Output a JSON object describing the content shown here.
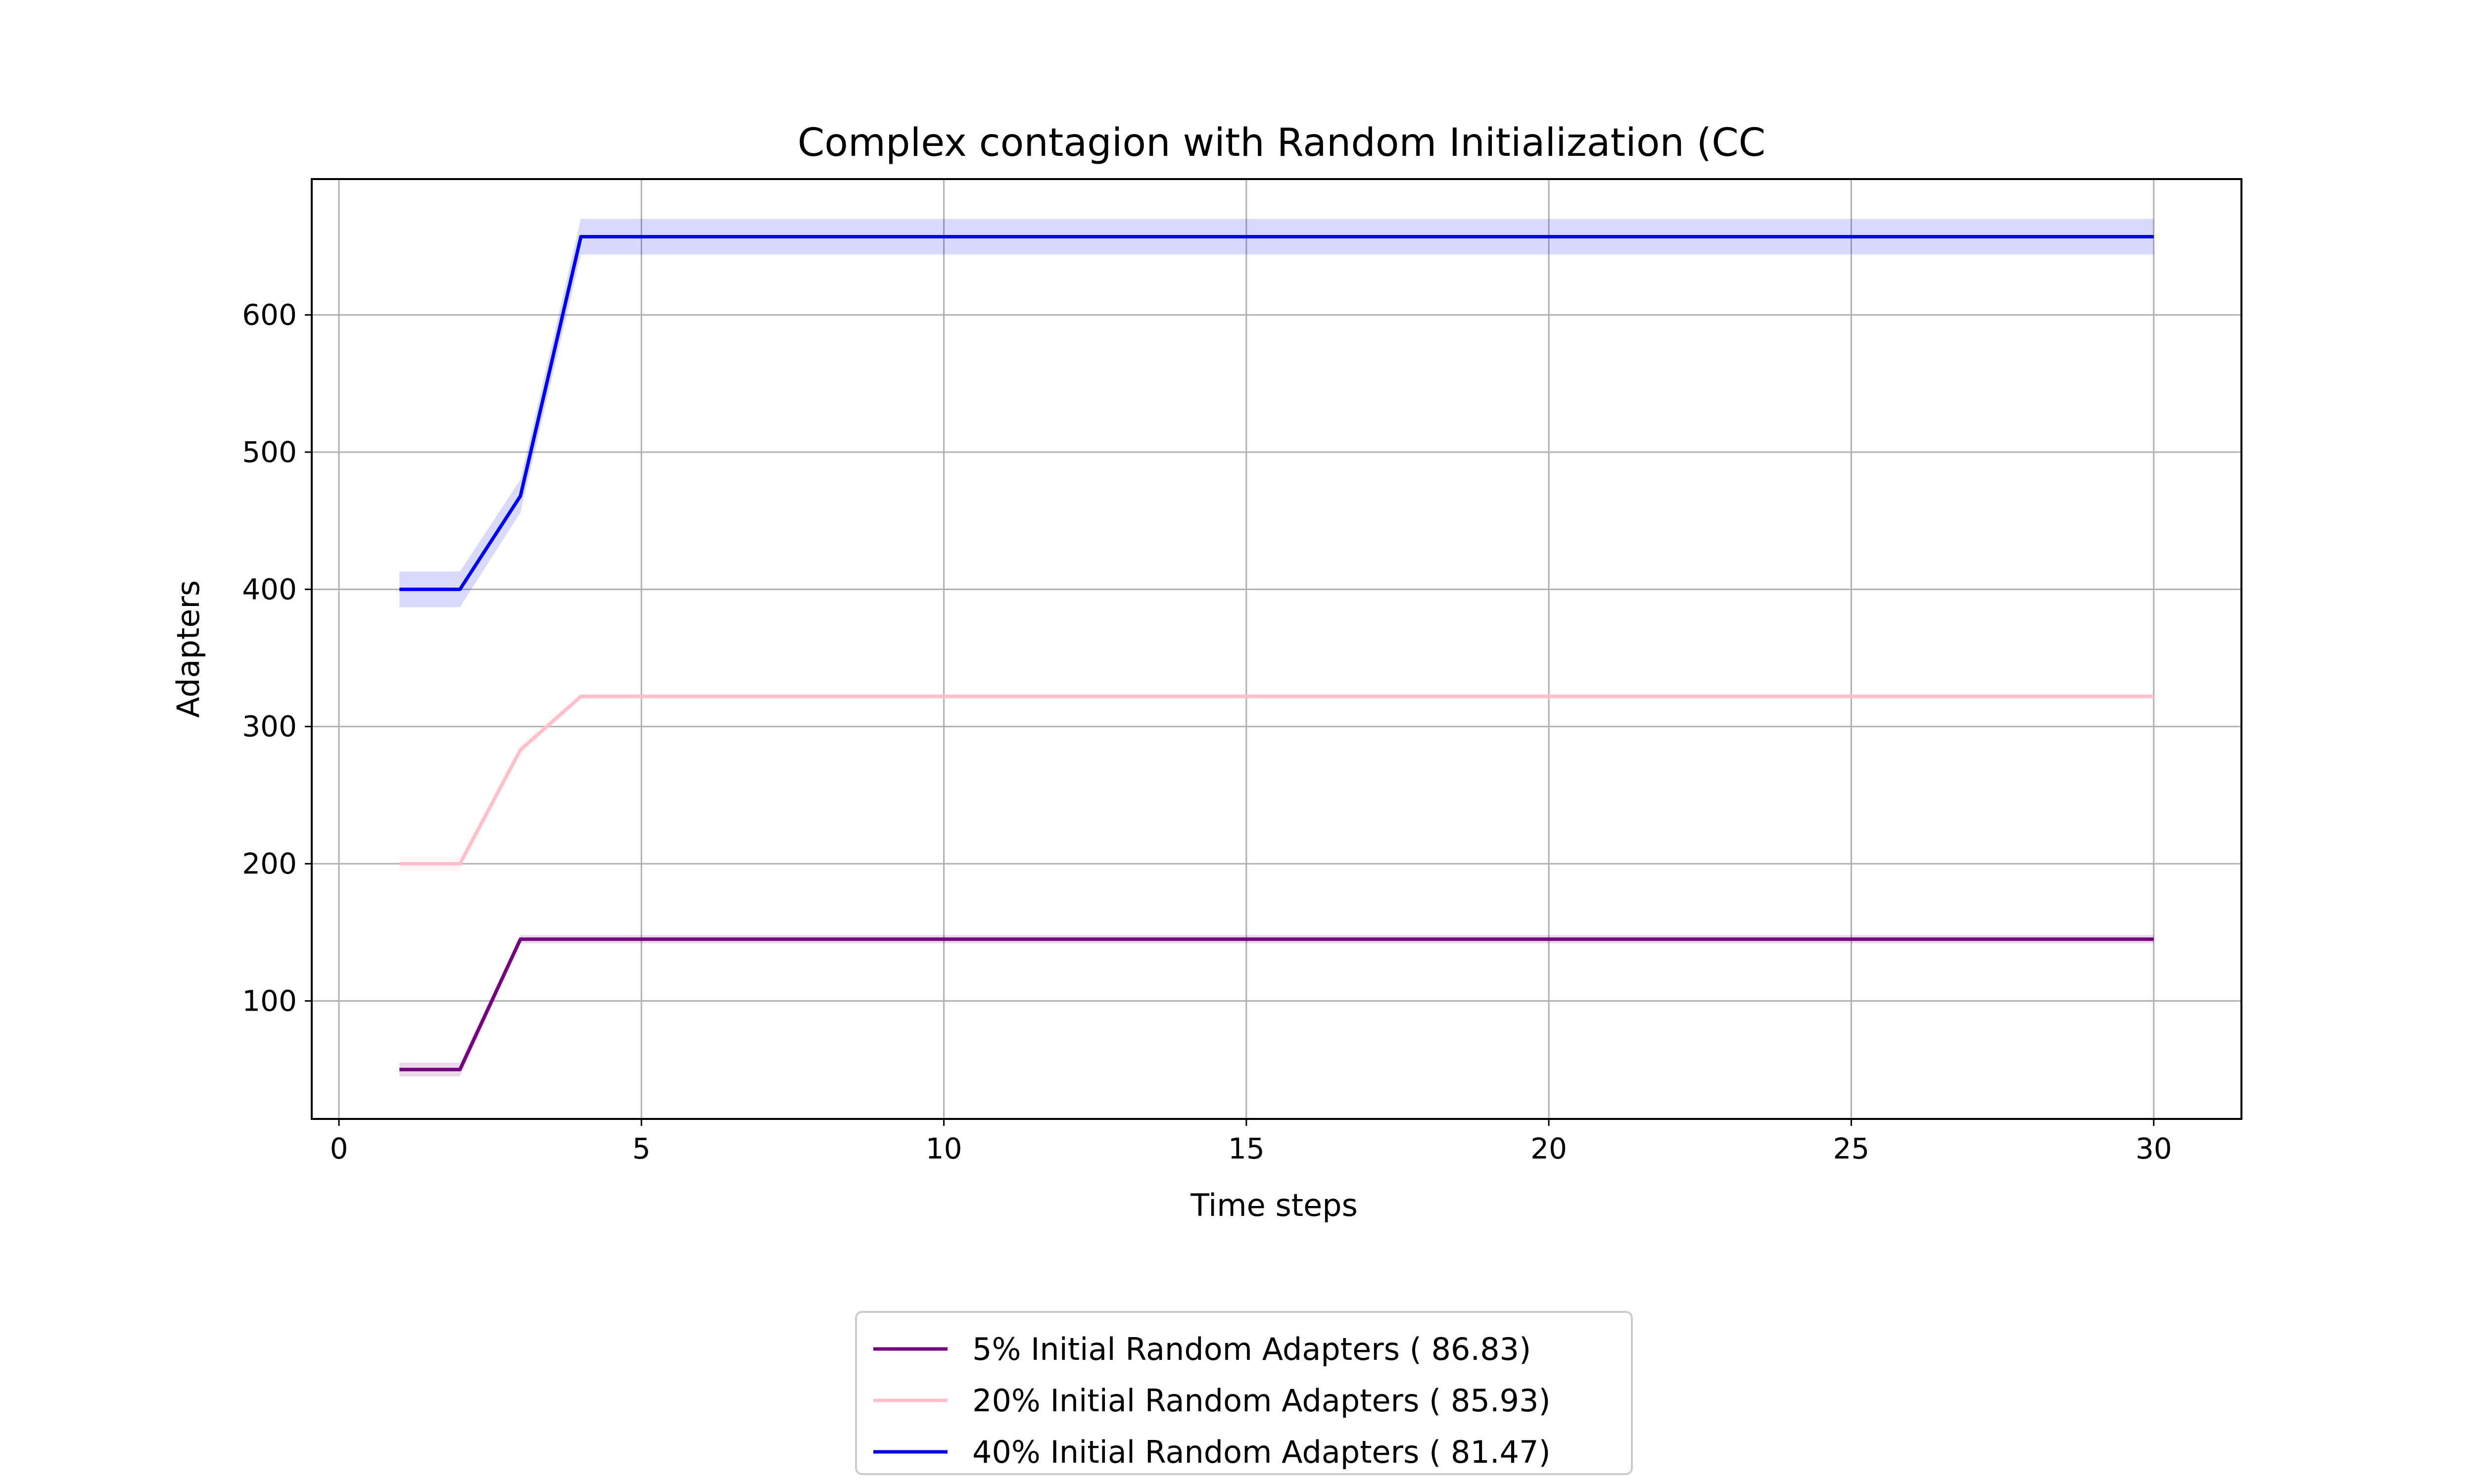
{
  "chart_data": {
    "type": "line",
    "title": "Complex contagion with Random Initialization (CC",
    "xlabel": "Time steps",
    "ylabel": "Adapters",
    "xlim": [
      -0.45,
      31.45
    ],
    "ylim": [
      14,
      699
    ],
    "xticks": [
      "0",
      "5",
      "10",
      "15",
      "20",
      "25",
      "30"
    ],
    "yticks": [
      "100",
      "200",
      "300",
      "400",
      "500",
      "600"
    ],
    "grid": true,
    "legend_position": "bottom-center",
    "x": [
      1,
      2,
      3,
      4,
      5,
      6,
      7,
      8,
      9,
      10,
      11,
      12,
      13,
      14,
      15,
      16,
      17,
      18,
      19,
      20,
      21,
      22,
      23,
      24,
      25,
      26,
      27,
      28,
      29,
      30
    ],
    "series": [
      {
        "name": "5% Initial Random Adapters ( 86.83)",
        "color": "#73007c",
        "values": [
          50,
          50,
          145,
          145,
          145,
          145,
          145,
          145,
          145,
          145,
          145,
          145,
          145,
          145,
          145,
          145,
          145,
          145,
          145,
          145,
          145,
          145,
          145,
          145,
          145,
          145,
          145,
          145,
          145,
          145
        ],
        "band": [
          5,
          5,
          3,
          3,
          3,
          3,
          3,
          3,
          3,
          3,
          3,
          3,
          3,
          3,
          3,
          3,
          3,
          3,
          3,
          3,
          3,
          3,
          3,
          3,
          3,
          3,
          3,
          3,
          3,
          3
        ]
      },
      {
        "name": "20% Initial Random Adapters ( 85.93)",
        "color": "#ffc0cb",
        "values": [
          200,
          200,
          283,
          322,
          322,
          322,
          322,
          322,
          322,
          322,
          322,
          322,
          322,
          322,
          322,
          322,
          322,
          322,
          322,
          322,
          322,
          322,
          322,
          322,
          322,
          322,
          322,
          322,
          322,
          322
        ],
        "band": [
          5,
          5,
          4,
          2,
          2,
          2,
          2,
          2,
          2,
          2,
          2,
          2,
          2,
          2,
          2,
          2,
          2,
          2,
          2,
          2,
          2,
          2,
          2,
          2,
          2,
          2,
          2,
          2,
          2,
          2
        ]
      },
      {
        "name": "40% Initial Random Adapters ( 81.47)",
        "color": "#0000ee",
        "values": [
          400,
          400,
          468,
          657,
          657,
          657,
          657,
          657,
          657,
          657,
          657,
          657,
          657,
          657,
          657,
          657,
          657,
          657,
          657,
          657,
          657,
          657,
          657,
          657,
          657,
          657,
          657,
          657,
          657,
          657
        ],
        "band": [
          13,
          13,
          12,
          13,
          13,
          13,
          13,
          13,
          13,
          13,
          13,
          13,
          13,
          13,
          13,
          13,
          13,
          13,
          13,
          13,
          13,
          13,
          13,
          13,
          13,
          13,
          13,
          13,
          13,
          13
        ]
      }
    ]
  }
}
